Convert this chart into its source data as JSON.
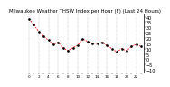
{
  "title": "Milwaukee Weather THSW Index per Hour (F) (Last 24 Hours)",
  "hours": [
    0,
    1,
    2,
    3,
    4,
    5,
    6,
    7,
    8,
    9,
    10,
    11,
    12,
    13,
    14,
    15,
    16,
    17,
    18,
    19,
    20,
    21,
    22,
    23
  ],
  "values": [
    38,
    33,
    26,
    22,
    18,
    14,
    16,
    11,
    8,
    11,
    13,
    19,
    17,
    15,
    15,
    16,
    13,
    10,
    7,
    10,
    8,
    12,
    14,
    12
  ],
  "line_color": "#ff0000",
  "marker_color": "#000000",
  "bg_color": "#ffffff",
  "grid_color": "#888888",
  "ylim": [
    -12,
    43
  ],
  "yticks": [
    -10,
    -5,
    0,
    5,
    10,
    15,
    20,
    25,
    30,
    35,
    40
  ],
  "title_fontsize": 4.0,
  "tick_fontsize": 3.5,
  "vgrid_positions": [
    0,
    2,
    4,
    6,
    8,
    10,
    12,
    14,
    16,
    18,
    20,
    22
  ]
}
